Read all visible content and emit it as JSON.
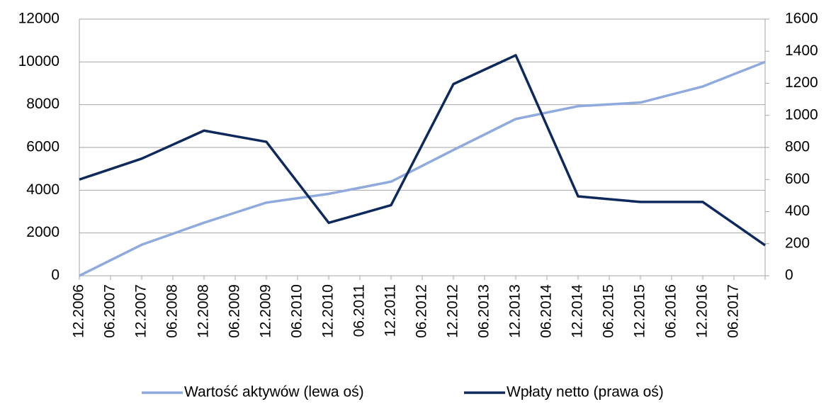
{
  "chart_data": {
    "type": "line",
    "categories": [
      "12.2006",
      "06.2007",
      "12.2007",
      "06.2008",
      "12.2008",
      "06.2009",
      "12.2009",
      "06.2010",
      "12.2010",
      "06.2011",
      "12.2011",
      "06.2012",
      "12.2012",
      "06.2013",
      "12.2013",
      "06.2014",
      "12.2014",
      "06.2015",
      "12.2015",
      "06.2016",
      "12.2016",
      "06.2017",
      null
    ],
    "series": [
      {
        "name": "Wartość aktywów (lewa oś)",
        "color": "#8faadc",
        "values": [
          0,
          725,
          1450,
          1965,
          2480,
          2950,
          3420,
          3625,
          3830,
          4115,
          4400,
          5140,
          5880,
          6605,
          7330,
          7630,
          7930,
          8015,
          8100,
          8475,
          8850,
          9425,
          10000
        ]
      },
      {
        "name": "Wpłaty  netto (prawa oś)",
        "color": "#0e2a5c",
        "axis": "y2",
        "values": [
          600,
          665,
          730,
          817.5,
          905,
          870,
          835,
          582.5,
          330,
          385,
          440,
          817.5,
          1195,
          1285,
          1375,
          935,
          495,
          477.5,
          460,
          460,
          460,
          325,
          190
        ]
      }
    ],
    "ylim": [
      0,
      12000
    ],
    "yticks": [
      0,
      2000,
      4000,
      6000,
      8000,
      10000,
      12000
    ],
    "y2lim": [
      0,
      1600
    ],
    "y2ticks": [
      0,
      200,
      400,
      600,
      800,
      1000,
      1200,
      1400,
      1600
    ],
    "grid": true
  }
}
